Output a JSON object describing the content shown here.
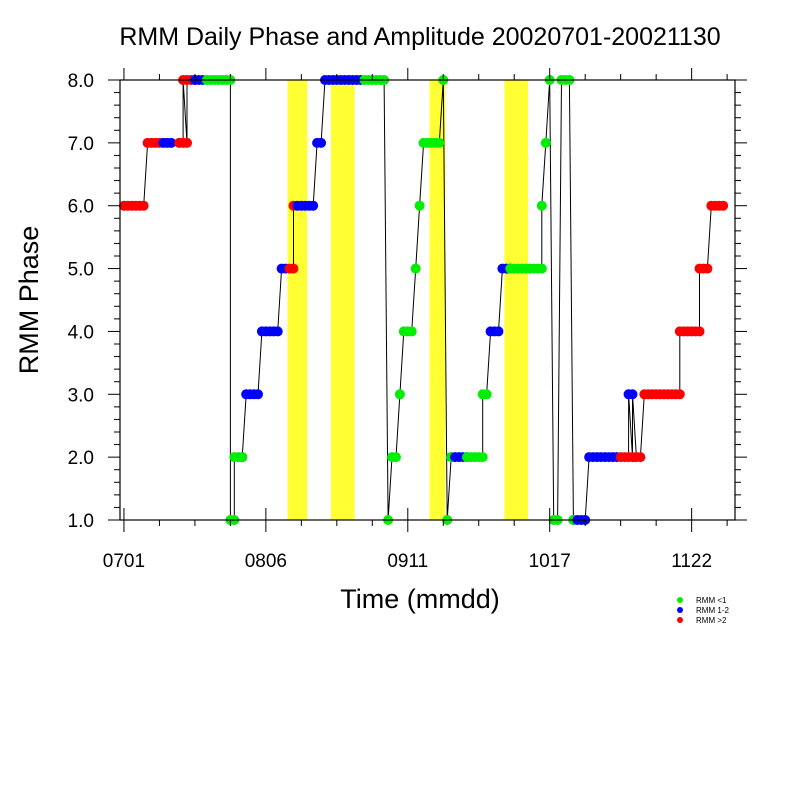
{
  "chart_data": {
    "type": "scatter",
    "title": "RMM Daily Phase and Amplitude 20020701-20021130",
    "xlabel": "Time (mmdd)",
    "ylabel": "RMM Phase",
    "x_start": "2002-07-01",
    "x_end": "2002-11-30",
    "xlim": [
      "2002-06-30",
      "2002-12-03"
    ],
    "ylim": [
      1,
      8
    ],
    "x_ticks": [
      {
        "date": "2002-07-01",
        "label": "0701"
      },
      {
        "date": "2002-08-06",
        "label": "0806"
      },
      {
        "date": "2002-09-11",
        "label": "0911"
      },
      {
        "date": "2002-10-17",
        "label": "1017"
      },
      {
        "date": "2002-11-22",
        "label": "1122"
      }
    ],
    "y_ticks": [
      {
        "value": 1,
        "label": "1.0"
      },
      {
        "value": 2,
        "label": "2.0"
      },
      {
        "value": 3,
        "label": "3.0"
      },
      {
        "value": 4,
        "label": "4.0"
      },
      {
        "value": 5,
        "label": "5.0"
      },
      {
        "value": 6,
        "label": "6.0"
      },
      {
        "value": 7,
        "label": "7.0"
      },
      {
        "value": 8,
        "label": "8.0"
      }
    ],
    "legend_position": "bottom-right",
    "legend": [
      {
        "label": "RMM <1",
        "color": "#00ee00"
      },
      {
        "label": "RMM 1-2",
        "color": "#0000ff"
      },
      {
        "label": "RMM >2",
        "color": "#ff0000"
      }
    ],
    "highlight_color": "#ffff33",
    "highlight_periods": [
      {
        "start": "2002-08-12",
        "end": "2002-08-16"
      },
      {
        "start": "2002-08-23",
        "end": "2002-08-28"
      },
      {
        "start": "2002-09-17",
        "end": "2002-09-20"
      },
      {
        "start": "2002-10-06",
        "end": "2002-10-11"
      }
    ],
    "series": [
      {
        "color": "#ff0000",
        "runs": [
          {
            "start": "2002-07-01",
            "end": "2002-07-06",
            "phase": 6
          },
          {
            "start": "2002-07-07",
            "end": "2002-07-10",
            "phase": 7
          },
          {
            "start": "2002-07-15",
            "end": "2002-07-17",
            "phase": 7
          },
          {
            "start": "2002-07-16",
            "end": "2002-07-19",
            "phase": 8
          },
          {
            "start": "2002-08-12",
            "end": "2002-08-13",
            "phase": 5
          },
          {
            "start": "2002-08-13",
            "end": "2002-08-13",
            "phase": 6
          },
          {
            "start": "2002-11-04",
            "end": "2002-11-09",
            "phase": 2
          },
          {
            "start": "2002-11-10",
            "end": "2002-11-19",
            "phase": 3
          },
          {
            "start": "2002-11-19",
            "end": "2002-11-24",
            "phase": 4
          },
          {
            "start": "2002-11-24",
            "end": "2002-11-26",
            "phase": 5
          },
          {
            "start": "2002-11-27",
            "end": "2002-11-30",
            "phase": 6
          }
        ]
      },
      {
        "color": "#0000ff",
        "runs": [
          {
            "start": "2002-07-11",
            "end": "2002-07-13",
            "phase": 7
          },
          {
            "start": "2002-07-19",
            "end": "2002-07-21",
            "phase": 8
          },
          {
            "start": "2002-07-31",
            "end": "2002-07-31",
            "phase": 2
          },
          {
            "start": "2002-08-01",
            "end": "2002-08-04",
            "phase": 3
          },
          {
            "start": "2002-08-05",
            "end": "2002-08-09",
            "phase": 4
          },
          {
            "start": "2002-08-10",
            "end": "2002-08-11",
            "phase": 5
          },
          {
            "start": "2002-08-14",
            "end": "2002-08-18",
            "phase": 6
          },
          {
            "start": "2002-08-19",
            "end": "2002-08-20",
            "phase": 7
          },
          {
            "start": "2002-08-21",
            "end": "2002-08-30",
            "phase": 8
          },
          {
            "start": "2002-09-22",
            "end": "2002-09-26",
            "phase": 2
          },
          {
            "start": "2002-10-02",
            "end": "2002-10-04",
            "phase": 4
          },
          {
            "start": "2002-10-05",
            "end": "2002-10-07",
            "phase": 5
          },
          {
            "start": "2002-10-23",
            "end": "2002-10-26",
            "phase": 1
          },
          {
            "start": "2002-10-27",
            "end": "2002-11-03",
            "phase": 2
          },
          {
            "start": "2002-11-06",
            "end": "2002-11-07",
            "phase": 3
          }
        ]
      },
      {
        "color": "#00ee00",
        "runs": [
          {
            "start": "2002-07-22",
            "end": "2002-07-28",
            "phase": 8
          },
          {
            "start": "2002-07-28",
            "end": "2002-07-29",
            "phase": 1
          },
          {
            "start": "2002-07-29",
            "end": "2002-07-31",
            "phase": 2
          },
          {
            "start": "2002-08-31",
            "end": "2002-09-05",
            "phase": 8
          },
          {
            "start": "2002-09-06",
            "end": "2002-09-06",
            "phase": 1
          },
          {
            "start": "2002-09-07",
            "end": "2002-09-08",
            "phase": 2
          },
          {
            "start": "2002-09-09",
            "end": "2002-09-09",
            "phase": 3
          },
          {
            "start": "2002-09-10",
            "end": "2002-09-12",
            "phase": 4
          },
          {
            "start": "2002-09-13",
            "end": "2002-09-13",
            "phase": 5
          },
          {
            "start": "2002-09-14",
            "end": "2002-09-14",
            "phase": 6
          },
          {
            "start": "2002-09-15",
            "end": "2002-09-19",
            "phase": 7
          },
          {
            "start": "2002-09-20",
            "end": "2002-09-20",
            "phase": 8
          },
          {
            "start": "2002-09-21",
            "end": "2002-09-21",
            "phase": 1
          },
          {
            "start": "2002-09-22",
            "end": "2002-09-22",
            "phase": 2
          },
          {
            "start": "2002-09-26",
            "end": "2002-09-30",
            "phase": 2
          },
          {
            "start": "2002-09-30",
            "end": "2002-10-01",
            "phase": 3
          },
          {
            "start": "2002-10-07",
            "end": "2002-10-15",
            "phase": 5
          },
          {
            "start": "2002-10-15",
            "end": "2002-10-15",
            "phase": 6
          },
          {
            "start": "2002-10-16",
            "end": "2002-10-16",
            "phase": 7
          },
          {
            "start": "2002-10-17",
            "end": "2002-10-17",
            "phase": 8
          },
          {
            "start": "2002-10-18",
            "end": "2002-10-19",
            "phase": 1
          },
          {
            "start": "2002-10-20",
            "end": "2002-10-22",
            "phase": 8
          },
          {
            "start": "2002-10-23",
            "end": "2002-10-23",
            "phase": 1
          }
        ]
      }
    ]
  }
}
